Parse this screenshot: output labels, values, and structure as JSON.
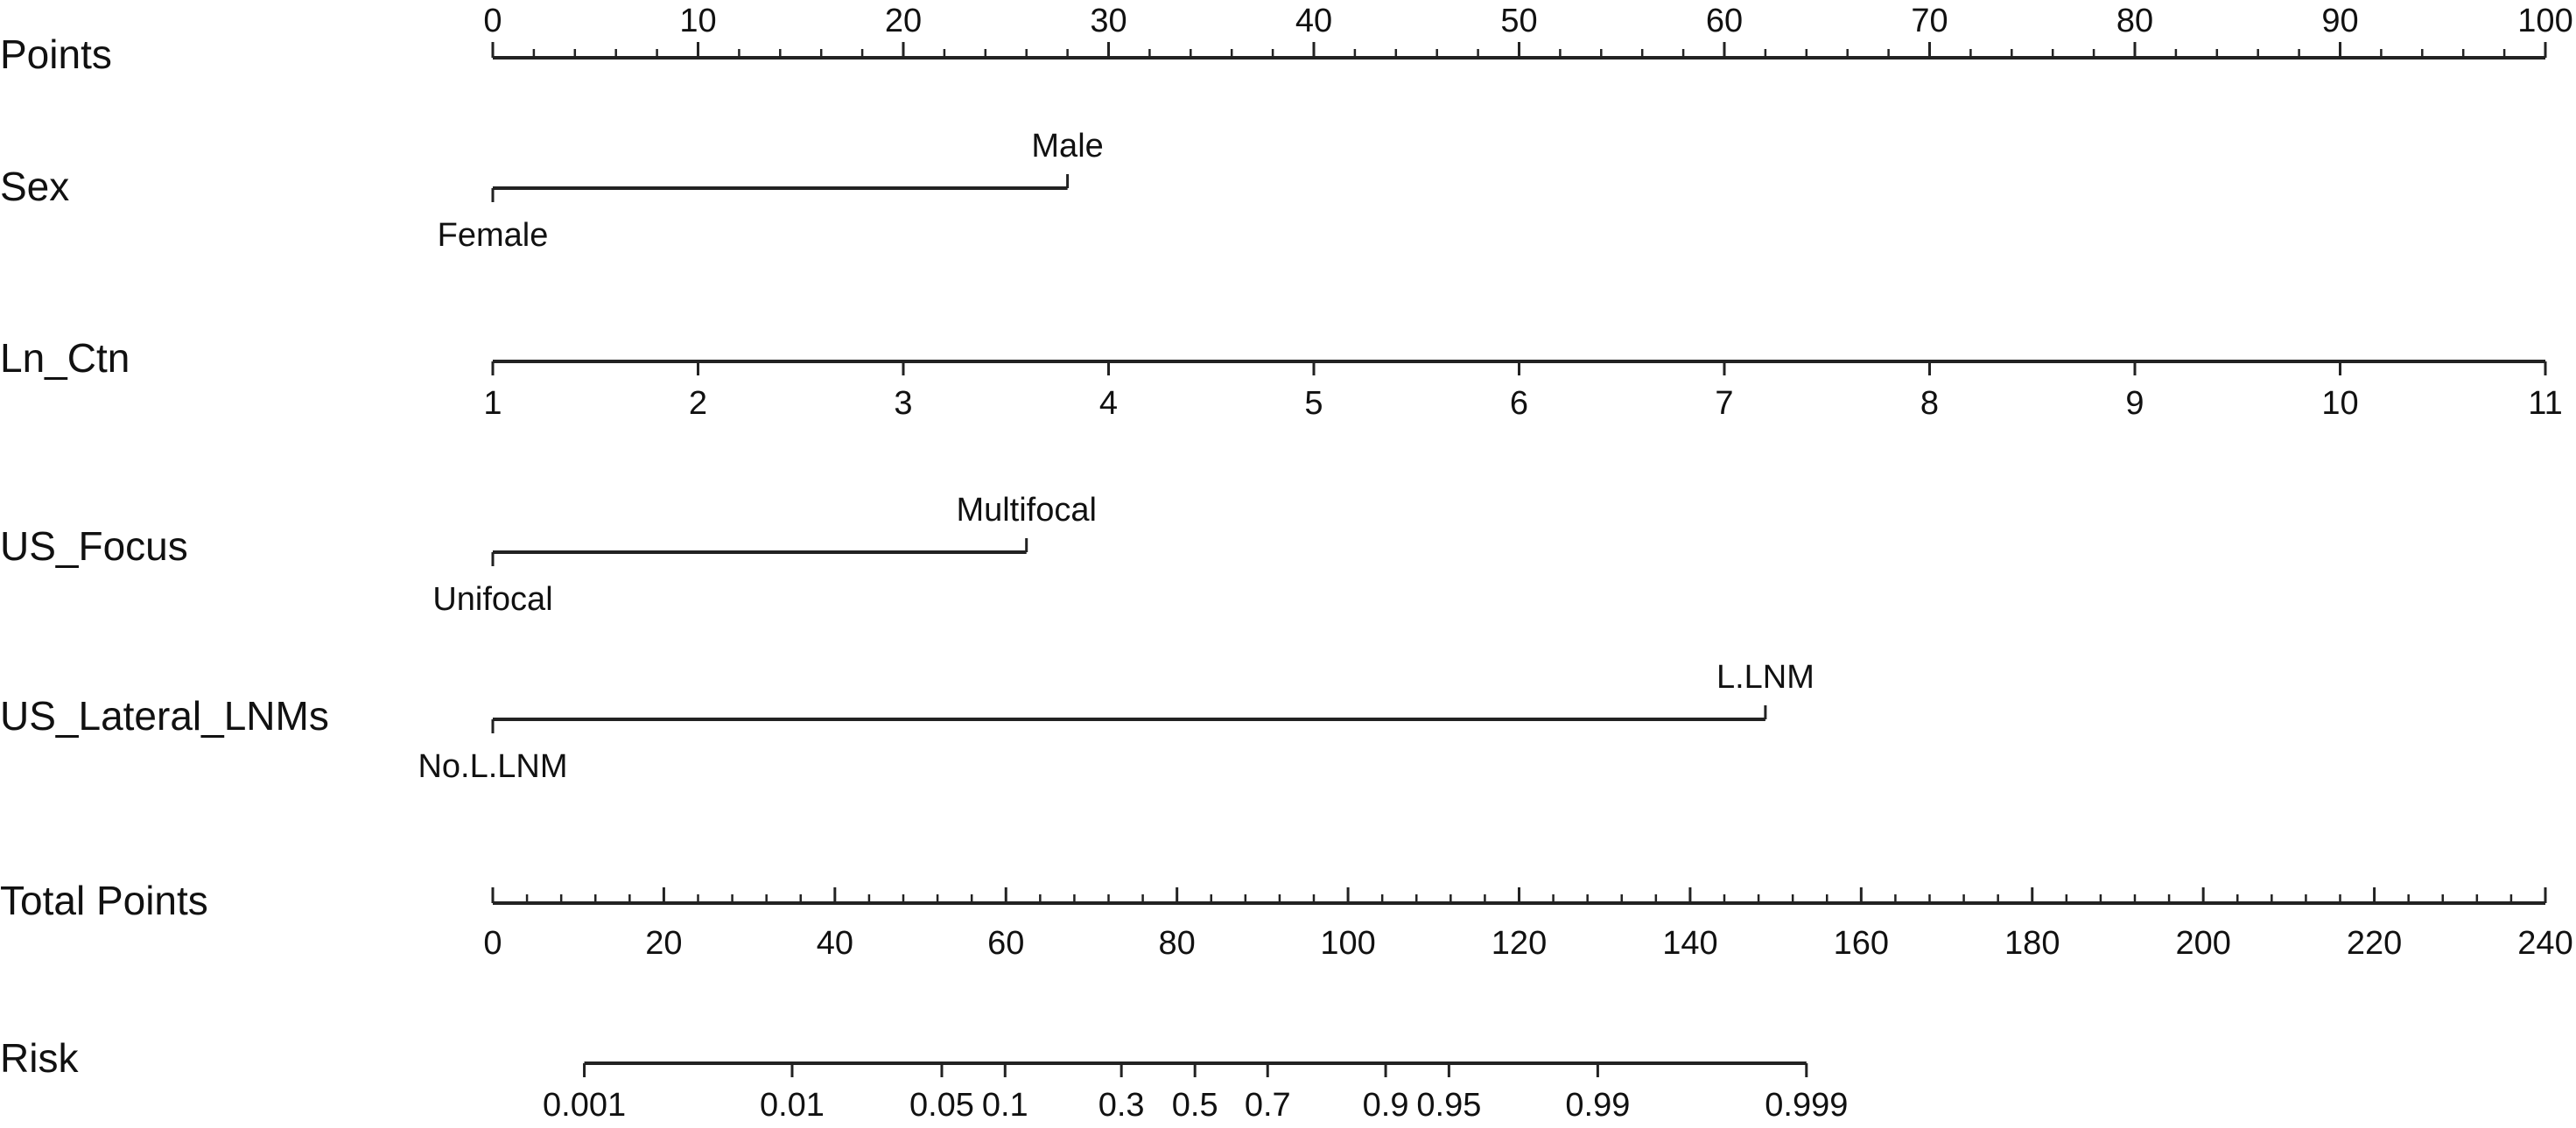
{
  "chart_data": {
    "type": "nomogram",
    "title": "",
    "rows": [
      {
        "id": "points",
        "label": "Points",
        "scale": {
          "kind": "linear",
          "min": 0,
          "max": 100,
          "major": [
            0,
            10,
            20,
            30,
            40,
            50,
            60,
            70,
            80,
            90,
            100
          ],
          "minor_step": 2
        },
        "tick_labels_position": "above"
      },
      {
        "id": "sex",
        "label": "Sex",
        "levels": [
          {
            "name": "Female",
            "points": 0,
            "label_position": "below"
          },
          {
            "name": "Male",
            "points": 28,
            "label_position": "above"
          }
        ]
      },
      {
        "id": "ln_ctn",
        "label": "Ln_Ctn",
        "scale": {
          "kind": "linear",
          "points_min": 0,
          "points_max": 100,
          "ticks": [
            1,
            2,
            3,
            4,
            5,
            6,
            7,
            8,
            9,
            10,
            11
          ]
        },
        "tick_labels_position": "below"
      },
      {
        "id": "us_focus",
        "label": "US_Focus",
        "levels": [
          {
            "name": "Unifocal",
            "points": 0,
            "label_position": "below"
          },
          {
            "name": "Multifocal",
            "points": 26,
            "label_position": "above"
          }
        ]
      },
      {
        "id": "us_lateral_lnms",
        "label": "US_Lateral_LNMs",
        "levels": [
          {
            "name": "No.L.LNM",
            "points": 0,
            "label_position": "below"
          },
          {
            "name": "L.LNM",
            "points": 62,
            "label_position": "above"
          }
        ]
      },
      {
        "id": "total_points",
        "label": "Total Points",
        "scale": {
          "kind": "linear",
          "min": 0,
          "max": 240,
          "major": [
            0,
            20,
            40,
            60,
            80,
            100,
            120,
            140,
            160,
            180,
            200,
            220,
            240
          ],
          "minor_step": 4
        },
        "tick_labels_position": "below"
      },
      {
        "id": "risk",
        "label": "Risk",
        "scale": {
          "kind": "probability",
          "ticks": [
            {
              "label": "0.001",
              "total_points": 10.7
            },
            {
              "label": "0.01",
              "total_points": 35.0
            },
            {
              "label": "0.05",
              "total_points": 52.5
            },
            {
              "label": "0.1",
              "total_points": 59.9
            },
            {
              "label": "0.3",
              "total_points": 73.5
            },
            {
              "label": "0.5",
              "total_points": 82.1
            },
            {
              "label": "0.7",
              "total_points": 90.6
            },
            {
              "label": "0.9",
              "total_points": 104.4
            },
            {
              "label": "0.95",
              "total_points": 111.8
            },
            {
              "label": "0.99",
              "total_points": 129.2
            },
            {
              "label": "0.999",
              "total_points": 153.6
            }
          ]
        },
        "tick_labels_position": "below"
      }
    ]
  }
}
